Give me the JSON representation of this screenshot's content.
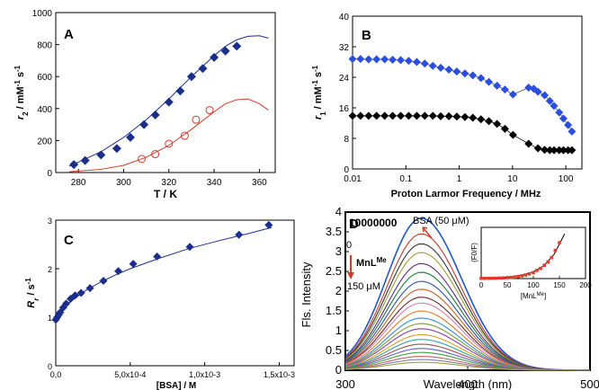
{
  "figure": {
    "colors": {
      "navy": "#1a2f8c",
      "red": "#d13b2b",
      "blue": "#2a4fe0",
      "black": "#000000"
    }
  },
  "chart_data": [
    {
      "panel": "A",
      "type": "scatter",
      "xlabel": "T / K",
      "ylabel": "r2 / mM-1 s-1",
      "ylabel_parts": {
        "r": "r",
        "sub": "2",
        "rest": " / mM",
        "sup1": "-1",
        "rest2": " s",
        "sup2": "-1"
      },
      "xlim": [
        270,
        367
      ],
      "ylim": [
        0,
        1000
      ],
      "xticks": [
        280,
        300,
        320,
        340,
        360
      ],
      "yticks": [
        0,
        200,
        400,
        600,
        800,
        1000
      ],
      "series": [
        {
          "marker": "diamond-filled",
          "color": "#1a2f8c",
          "x": [
            278,
            283,
            290,
            297,
            303,
            309,
            314,
            320,
            325,
            330,
            335,
            340,
            345,
            350
          ],
          "y": [
            50,
            75,
            110,
            150,
            220,
            300,
            360,
            440,
            510,
            600,
            650,
            720,
            760,
            790
          ]
        },
        {
          "marker": "circle-open",
          "color": "#d13b2b",
          "x": [
            308,
            314,
            320,
            327,
            332,
            338
          ],
          "y": [
            85,
            115,
            180,
            230,
            330,
            390
          ]
        }
      ],
      "fits": [
        {
          "color": "#1a2f8c",
          "x": [
            276,
            280,
            290,
            300,
            310,
            320,
            330,
            340,
            345,
            350,
            355,
            360,
            364
          ],
          "y": [
            40,
            65,
            130,
            220,
            330,
            460,
            600,
            730,
            790,
            830,
            852,
            855,
            840
          ]
        },
        {
          "color": "#d13b2b",
          "x": [
            276,
            290,
            300,
            310,
            320,
            330,
            340,
            345,
            350,
            355,
            360,
            364
          ],
          "y": [
            5,
            20,
            45,
            95,
            170,
            270,
            380,
            430,
            455,
            460,
            430,
            390
          ]
        }
      ]
    },
    {
      "panel": "B",
      "type": "scatter",
      "xscale": "log",
      "xlabel": "Proton Larmor Frequency / MHz",
      "ylabel": "r1 / mM-1 s-1",
      "ylabel_parts": {
        "r": "r",
        "sub": "1",
        "rest": " / mM",
        "sup1": "-1",
        "rest2": " s",
        "sup2": "-1"
      },
      "xlim": [
        0.01,
        200
      ],
      "ylim": [
        0,
        40
      ],
      "xticks": [
        0.01,
        0.1,
        1,
        10,
        100
      ],
      "xticklabels": [
        "0.01",
        "0.1",
        "1",
        "10",
        "100"
      ],
      "yticks": [
        0,
        8,
        16,
        24,
        32,
        40
      ],
      "series": [
        {
          "marker": "diamond-filled",
          "color": "#2a4fe0",
          "x": [
            0.01,
            0.0141,
            0.02,
            0.0282,
            0.04,
            0.0564,
            0.08,
            0.113,
            0.16,
            0.226,
            0.32,
            0.45,
            0.64,
            0.9,
            1.28,
            1.8,
            2.56,
            3.6,
            5.12,
            7.2,
            10.2,
            20,
            25,
            30,
            40,
            50,
            60,
            75,
            90,
            110,
            130
          ],
          "y": [
            28.8,
            28.8,
            28.7,
            28.7,
            28.7,
            28.6,
            28.5,
            28.3,
            28.0,
            27.6,
            27.0,
            26.5,
            26.0,
            25.5,
            25.0,
            24.5,
            23.8,
            22.8,
            21.8,
            20.8,
            19.5,
            21.3,
            21.0,
            20.2,
            19.3,
            17.8,
            16.5,
            14.8,
            13.2,
            11.5,
            9.8
          ]
        },
        {
          "marker": "diamond-filled",
          "color": "#000000",
          "x": [
            0.01,
            0.0141,
            0.02,
            0.0282,
            0.04,
            0.0564,
            0.08,
            0.113,
            0.16,
            0.226,
            0.32,
            0.45,
            0.64,
            0.9,
            1.28,
            1.8,
            2.56,
            3.6,
            5.12,
            7.2,
            10.2,
            20,
            30,
            40,
            50,
            60,
            75,
            90,
            110,
            130
          ],
          "y": [
            13.9,
            13.9,
            13.9,
            13.9,
            13.9,
            13.9,
            13.9,
            13.9,
            13.9,
            13.9,
            13.9,
            13.8,
            13.8,
            13.7,
            13.6,
            13.4,
            13.0,
            12.5,
            11.8,
            10.5,
            8.9,
            6.6,
            5.4,
            5.0,
            4.9,
            4.9,
            4.9,
            4.9,
            4.9,
            4.9
          ]
        }
      ]
    },
    {
      "panel": "C",
      "type": "scatter",
      "xlabel": "[BSA] / M",
      "ylabel": "Rr / s-1",
      "ylabel_parts": {
        "r": "R",
        "sub": "r",
        "rest": " / s",
        "sup1": "-1",
        "rest2": "",
        "sup2": ""
      },
      "xlim": [
        0,
        0.0016
      ],
      "ylim": [
        0,
        3
      ],
      "xticks": [
        0,
        0.0005,
        0.001,
        0.0015
      ],
      "xticklabels": [
        "0,0",
        "5,0x10-4",
        "1,0x10-3",
        "1,5x10-3"
      ],
      "yticks": [
        0,
        1,
        2,
        3
      ],
      "series": [
        {
          "marker": "diamond-filled",
          "color": "#1a2f8c",
          "x": [
            0,
            1e-05,
            2e-05,
            3e-05,
            5e-05,
            7e-05,
            0.0001,
            0.00013,
            0.00017,
            0.00023,
            0.00032,
            0.00042,
            0.00052,
            0.00068,
            0.0009,
            0.00123,
            0.00143
          ],
          "y": [
            0.95,
            1.0,
            1.05,
            1.1,
            1.2,
            1.28,
            1.38,
            1.45,
            1.5,
            1.6,
            1.75,
            1.95,
            2.1,
            2.25,
            2.45,
            2.7,
            2.9
          ]
        }
      ],
      "fits": [
        {
          "color": "#1a2f8c",
          "x": [
            0,
            2e-05,
            5e-05,
            0.0001,
            0.0002,
            0.0003,
            0.0004,
            0.0005,
            0.0007,
            0.0009,
            0.0011,
            0.0013,
            0.00145
          ],
          "y": [
            0.92,
            1.05,
            1.18,
            1.33,
            1.55,
            1.72,
            1.87,
            2.0,
            2.22,
            2.42,
            2.58,
            2.73,
            2.85
          ]
        }
      ]
    },
    {
      "panel": "D",
      "type": "line",
      "xlabel": "Wavelength (nm)",
      "ylabel": "Fls. Intensity",
      "yscale_label": "10000000",
      "xlim": [
        300,
        500
      ],
      "ylim": [
        0,
        4
      ],
      "xticks": [
        300,
        400,
        500
      ],
      "yticks": [
        0,
        0.5,
        1,
        1.5,
        2,
        2.5,
        3,
        3.5,
        4
      ],
      "yticklabels": [
        "0",
        "0.5",
        "1",
        "1.5",
        "2",
        "2.5",
        "3",
        "3.5",
        "4"
      ],
      "annotations": {
        "bsa": "BSA (50 μM)",
        "start": "0",
        "ligand": "MnL",
        "ligand_sup": "Me",
        "end": "150 μM"
      },
      "peak_wavelength": 362,
      "width": 44,
      "series_peaks": [
        3.85,
        3.45,
        3.2,
        2.98,
        2.7,
        2.48,
        2.25,
        2.05,
        1.85,
        1.7,
        1.5,
        1.32,
        1.18,
        1.05,
        0.9,
        0.78,
        0.66,
        0.55,
        0.45,
        0.35,
        0.27,
        0.2
      ],
      "series_colors": [
        "#1f56c8",
        "#c0392b",
        "#333333",
        "#9e9e2e",
        "#5a2a8a",
        "#1a7a3a",
        "#2a4fb0",
        "#c46020",
        "#6a2a2a",
        "#d080b0",
        "#e07a2a",
        "#3a8ad0",
        "#7a9a3a",
        "#8a3ab0",
        "#d4a020",
        "#2aa0a0",
        "#a05050",
        "#6060c0",
        "#40a040",
        "#c06060",
        "#8080a0",
        "#a0a040"
      ],
      "inset": {
        "xlabel": "[MnL",
        "xlabel_sup": "Me",
        "xlabel_end": "]",
        "ylabel": "(F0/F)",
        "xlim": [
          0,
          200
        ],
        "ylim": [
          0,
          200
        ],
        "xticks": [
          0,
          50,
          100,
          150,
          200
        ],
        "points_x": [
          0,
          7,
          14,
          21,
          28,
          35,
          42,
          50,
          57,
          64,
          71,
          78,
          85,
          92,
          100,
          107,
          114,
          121,
          128,
          135,
          142,
          150
        ],
        "points_y": [
          1,
          1,
          1,
          1.2,
          1.5,
          2,
          2.6,
          3.5,
          4.6,
          6,
          8,
          10.5,
          14,
          18,
          23,
          32,
          40,
          52,
          65,
          82,
          110,
          140
        ],
        "fit_x": [
          0,
          40,
          60,
          80,
          100,
          120,
          140,
          160
        ],
        "fit_y": [
          1,
          3,
          7,
          14,
          27,
          50,
          95,
          175
        ],
        "point_color": "#e53a2a"
      }
    }
  ]
}
